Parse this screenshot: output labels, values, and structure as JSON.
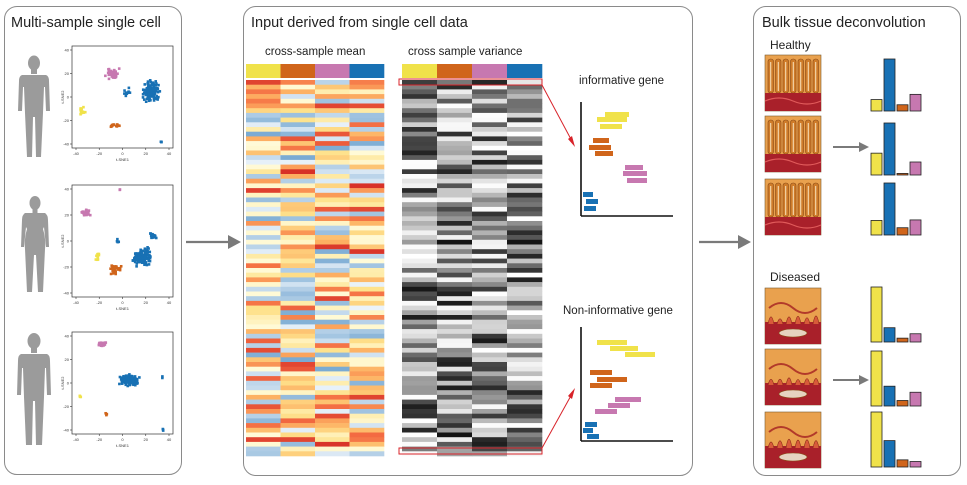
{
  "left_panel": {
    "title": "Multi-sample single cell",
    "plots": [
      {
        "xlabel": "t-SNE1",
        "ylabel": "t-SNE2",
        "x_ticks": [
          "-40",
          "-20",
          "0",
          "20",
          "40"
        ],
        "y_ticks": [
          "40",
          "20",
          "0",
          "-20",
          "-40"
        ]
      },
      {
        "xlabel": "t-SNE1",
        "ylabel": "t-SNE2",
        "x_ticks": [
          "-40",
          "-20",
          "0",
          "20",
          "40"
        ],
        "y_ticks": [
          "40",
          "20",
          "0",
          "-20",
          "-40"
        ]
      },
      {
        "xlabel": "t-SNE1",
        "ylabel": "t-SNE2",
        "x_ticks": [
          "-40",
          "-20",
          "0",
          "20",
          "40"
        ],
        "y_ticks": [
          "40",
          "20",
          "0",
          "-20",
          "-40"
        ]
      }
    ]
  },
  "middle_panel": {
    "title": "Input derived from single cell data",
    "mean_heatmap_label": "cross-sample mean",
    "variance_heatmap_label": "cross sample variance",
    "informative_label": "informative gene",
    "noninformative_label": "Non-informative gene",
    "n_rows": 80
  },
  "right_panel": {
    "title": "Bulk tissue deconvolution",
    "healthy_label": "Healthy",
    "diseased_label": "Diseased",
    "healthy_bars": [
      [
        0.22,
        1.0,
        0.12,
        0.32
      ],
      [
        0.42,
        1.0,
        0.03,
        0.25
      ],
      [
        0.28,
        1.0,
        0.14,
        0.29
      ]
    ],
    "diseased_bars": [
      [
        1.0,
        0.26,
        0.07,
        0.15
      ],
      [
        1.0,
        0.36,
        0.1,
        0.25
      ],
      [
        1.0,
        0.48,
        0.13,
        0.1
      ]
    ]
  },
  "colors": {
    "yellow": "#f0e24a",
    "orange": "#d0651b",
    "pink": "#c778b0",
    "blue": "#1871b4",
    "arrow": "#7a7a7a",
    "red": "#d8232a"
  }
}
